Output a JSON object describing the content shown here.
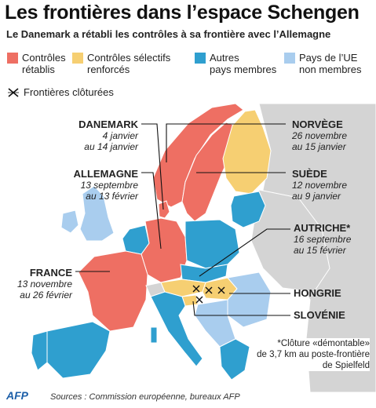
{
  "title": "Les frontières dans l’espace Schengen",
  "subtitle": "Le Danemark a rétabli les contrôles à sa frontière avec l’Allemagne",
  "legend": {
    "items": [
      {
        "label_line1": "Contrôles",
        "label_line2": "rétablis",
        "color": "#ee6f63"
      },
      {
        "label_line1": "Contrôles sélectifs",
        "label_line2": "renforcés",
        "color": "#f6cf72"
      },
      {
        "label_line1": "Autres",
        "label_line2": "pays membres",
        "color": "#2f9fcf"
      },
      {
        "label_line1": "Pays de l’UE",
        "label_line2": "non membres",
        "color": "#a9cdee"
      }
    ],
    "fence_label": "Frontières clôturées"
  },
  "colors": {
    "sea": "#ffffff",
    "non_eu": "#d4d4d4",
    "border": "#ffffff",
    "callout": "#111111"
  },
  "countries": {
    "danemark": {
      "name": "DANEMARK",
      "dates_line1": "4 janvier",
      "dates_line2": "au 14 janvier"
    },
    "allemagne": {
      "name": "ALLEMAGNE",
      "dates_line1": "13 septembre",
      "dates_line2": "au 13 février"
    },
    "france": {
      "name": "FRANCE",
      "dates_line1": "13 novembre",
      "dates_line2": "au 26 février"
    },
    "norvege": {
      "name": "NORVÈGE",
      "dates_line1": "26 novembre",
      "dates_line2": "au 15 janvier"
    },
    "suede": {
      "name": "SUÈDE",
      "dates_line1": "12 novembre",
      "dates_line2": "au 9 janvier"
    },
    "autriche": {
      "name": "AUTRICHE*",
      "dates_line1": "16 septembre",
      "dates_line2": "au 15 février"
    },
    "hongrie": {
      "name": "HONGRIE"
    },
    "slovenie": {
      "name": "SLOVÉNIE"
    }
  },
  "note": {
    "line1": "*Clôture «démontable»",
    "line2": "de 3,7 km au poste-frontière",
    "line3": "de Spielfeld"
  },
  "source": "Sources : Commission européenne, bureaux AFP",
  "logo": "AFP"
}
